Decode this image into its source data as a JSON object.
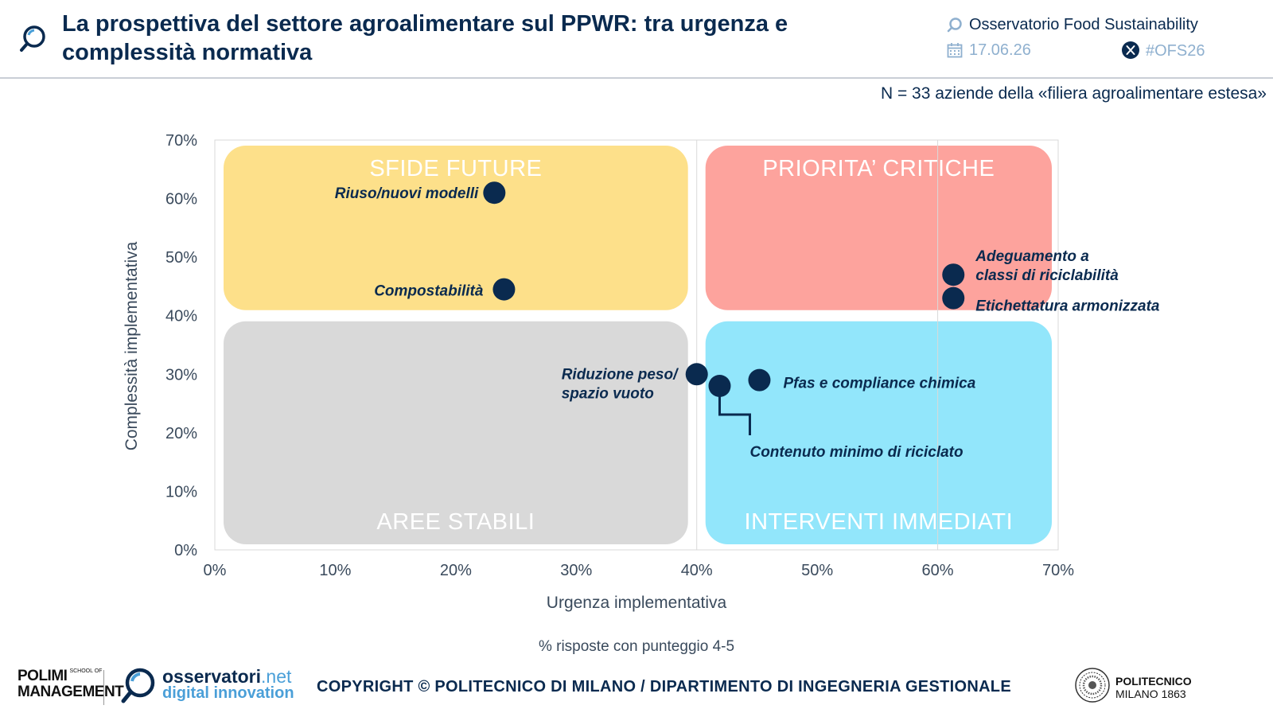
{
  "header": {
    "title": "La prospettiva del settore agroalimentare sul PPWR: tra urgenza e complessità normativa",
    "observatory": "Osservatorio Food Sustainability",
    "date": "17.06.26",
    "hashtag": "#OFS26"
  },
  "sample_note": "N = 33 aziende della «filiera agroalimentare estesa»",
  "footnote": "% risposte con punteggio 4-5",
  "footer": {
    "copyright": "COPYRIGHT © POLITECNICO DI MILANO / DIPARTIMENTO DI INGEGNERIA GESTIONALE",
    "polimi_line1": "POLIMI",
    "polimi_line2": "MANAGEMENT",
    "polimi_school": "SCHOOL OF",
    "osservatori_name": "osservatori",
    "osservatori_tld": ".net",
    "osservatori_sub": "digital innovation",
    "politecnico_line1": "POLITECNICO",
    "politecnico_line2": "MILANO 1863"
  },
  "colors": {
    "navy": "#0a2a4f",
    "quadrant_top_left": "#fde08a",
    "quadrant_top_right": "#fda39d",
    "quadrant_bottom_left": "#d9d9d9",
    "quadrant_bottom_right": "#92e6fb"
  },
  "chart_data": {
    "type": "scatter",
    "xlabel": "Urgenza implementativa",
    "ylabel": "Complessità implementativa",
    "xlim": [
      0,
      70
    ],
    "ylim": [
      0,
      70
    ],
    "x_ticks": [
      "0%",
      "10%",
      "20%",
      "30%",
      "40%",
      "50%",
      "60%",
      "70%"
    ],
    "y_ticks": [
      "0%",
      "10%",
      "20%",
      "30%",
      "40%",
      "50%",
      "60%",
      "70%"
    ],
    "grid": "vertical at 40% and 60%",
    "quadrants": [
      {
        "label": "SFIDE FUTURE",
        "x_range": [
          0,
          40
        ],
        "y_range": [
          40,
          70
        ],
        "color": "#fde08a"
      },
      {
        "label": "PRIORITA’ CRITICHE",
        "x_range": [
          40,
          70
        ],
        "y_range": [
          40,
          70
        ],
        "color": "#fda39d"
      },
      {
        "label": "AREE STABILI",
        "x_range": [
          0,
          40
        ],
        "y_range": [
          0,
          40
        ],
        "color": "#d9d9d9"
      },
      {
        "label": "INTERVENTI IMMEDIATI",
        "x_range": [
          40,
          70
        ],
        "y_range": [
          0,
          40
        ],
        "color": "#92e6fb"
      }
    ],
    "points": [
      {
        "label": "Riuso/nuovi modelli",
        "x": 23.2,
        "y": 61.0
      },
      {
        "label": "Compostabilità",
        "x": 24.0,
        "y": 44.5
      },
      {
        "label": "Adeguamento a classi di riciclabilità",
        "x": 61.3,
        "y": 47.0
      },
      {
        "label": "Etichettatura armonizzata",
        "x": 61.3,
        "y": 43.0
      },
      {
        "label": "Riduzione peso/ spazio vuoto",
        "x": 40.0,
        "y": 30.0
      },
      {
        "label": "Contenuto minimo di riciclato",
        "x": 41.9,
        "y": 28.0
      },
      {
        "label": "Pfas e compliance chimica",
        "x": 45.2,
        "y": 29.0
      }
    ]
  }
}
